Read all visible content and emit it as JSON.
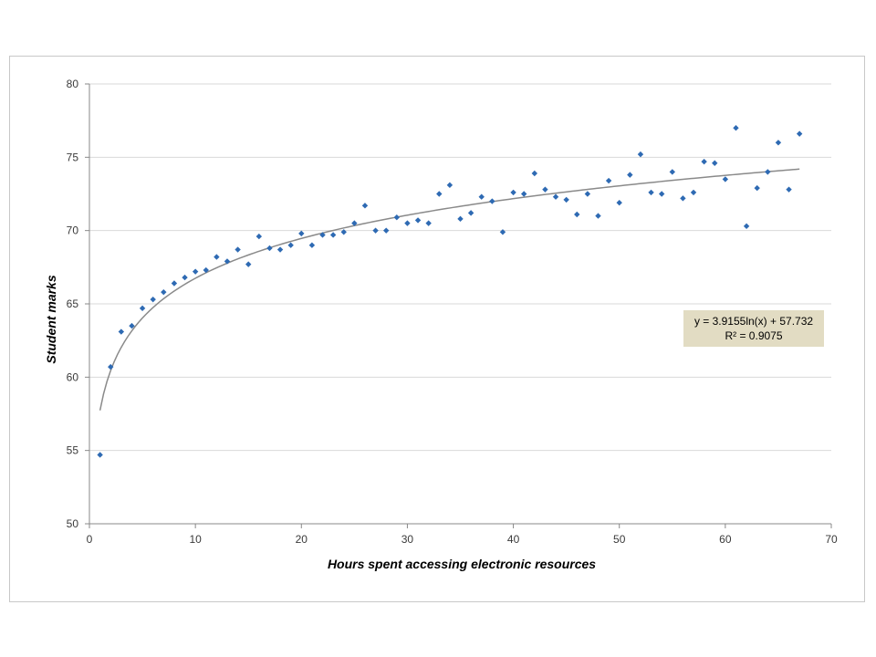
{
  "chart_data": {
    "type": "scatter",
    "title": "",
    "xlabel": "Hours spent accessing electronic resources",
    "ylabel": "Student marks",
    "xlim": [
      0,
      70
    ],
    "ylim": [
      50,
      80
    ],
    "x_ticks": [
      0,
      10,
      20,
      30,
      40,
      50,
      60,
      70
    ],
    "y_ticks": [
      50,
      55,
      60,
      65,
      70,
      75,
      80
    ],
    "grid": "horizontal",
    "legend": "none",
    "marker_color": "#2e6ab3",
    "trendline": {
      "type": "logarithmic",
      "a": 3.9155,
      "b": 57.732,
      "x_range": [
        1,
        67
      ],
      "color": "#8a8a8a",
      "equation_label": "y = 3.9155ln(x) + 57.732",
      "r2_label": "R² = 0.9075",
      "label_background": "#e2dcc3",
      "label_placement": "right-middle"
    },
    "series": [
      {
        "points": [
          [
            1,
            54.7
          ],
          [
            2,
            60.7
          ],
          [
            3,
            63.1
          ],
          [
            4,
            63.5
          ],
          [
            5,
            64.7
          ],
          [
            6,
            65.3
          ],
          [
            7,
            65.8
          ],
          [
            8,
            66.4
          ],
          [
            9,
            66.8
          ],
          [
            10,
            67.2
          ],
          [
            11,
            67.3
          ],
          [
            12,
            68.2
          ],
          [
            13,
            67.9
          ],
          [
            14,
            68.7
          ],
          [
            15,
            67.7
          ],
          [
            16,
            69.6
          ],
          [
            17,
            68.8
          ],
          [
            18,
            68.7
          ],
          [
            19,
            69.0
          ],
          [
            20,
            69.8
          ],
          [
            21,
            69.0
          ],
          [
            22,
            69.7
          ],
          [
            23,
            69.7
          ],
          [
            24,
            69.9
          ],
          [
            25,
            70.5
          ],
          [
            26,
            71.7
          ],
          [
            27,
            70.0
          ],
          [
            28,
            70.0
          ],
          [
            29,
            70.9
          ],
          [
            30,
            70.5
          ],
          [
            31,
            70.7
          ],
          [
            32,
            70.5
          ],
          [
            33,
            72.5
          ],
          [
            34,
            73.1
          ],
          [
            35,
            70.8
          ],
          [
            36,
            71.2
          ],
          [
            37,
            72.3
          ],
          [
            38,
            72.0
          ],
          [
            39,
            69.9
          ],
          [
            40,
            72.6
          ],
          [
            41,
            72.5
          ],
          [
            42,
            73.9
          ],
          [
            43,
            72.8
          ],
          [
            44,
            72.3
          ],
          [
            45,
            72.1
          ],
          [
            46,
            71.1
          ],
          [
            47,
            72.5
          ],
          [
            48,
            71.0
          ],
          [
            49,
            73.4
          ],
          [
            50,
            71.9
          ],
          [
            51,
            73.8
          ],
          [
            52,
            75.2
          ],
          [
            53,
            72.6
          ],
          [
            54,
            72.5
          ],
          [
            55,
            74.0
          ],
          [
            56,
            72.2
          ],
          [
            57,
            72.6
          ],
          [
            58,
            74.7
          ],
          [
            59,
            74.6
          ],
          [
            60,
            73.5
          ],
          [
            61,
            77.0
          ],
          [
            62,
            70.3
          ],
          [
            63,
            72.9
          ],
          [
            64,
            74.0
          ],
          [
            65,
            76.0
          ],
          [
            66,
            72.8
          ],
          [
            67,
            76.6
          ]
        ]
      }
    ]
  }
}
